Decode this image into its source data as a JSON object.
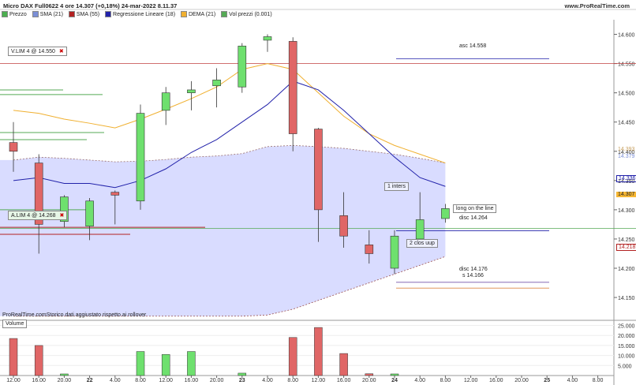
{
  "header": {
    "title": "Micro DAX Full0622 4 ore 14.307 (+0,18%) 24-mar-2022 8.11.37",
    "brand": "www.ProRealTime.com"
  },
  "legend": [
    {
      "label": "Prezzo",
      "color": "#4caf50"
    },
    {
      "label": "SMA (21)",
      "color": "#7b8fd6"
    },
    {
      "label": "SMA (55)",
      "color": "#b22222"
    },
    {
      "label": "Regressione Lineare (18)",
      "color": "#2222aa"
    },
    {
      "label": "DEMA (21)",
      "color": "#f0b030"
    },
    {
      "label": "Vol prezzi (0.001)",
      "color": "#55aa55"
    }
  ],
  "annotations": {
    "vlim": "V.LIM  4 @ 14.550",
    "alim": "A.LIM  4 @ 14.268",
    "asc": "asc 14.558",
    "disc1": "disc 14.264",
    "disc2": "disc 14.176",
    "s": "s 14.166",
    "inters": "1 inters",
    "clos": "2 clos uup",
    "line": "long on the line",
    "footer": "ProRealTime.comStorico dati aggiustato rispetto ai rollover",
    "volume_title": "Volume"
  },
  "price_tags": [
    {
      "label": "14.379",
      "color": "#7b8fd6",
      "bg": "#ffffff"
    },
    {
      "label": "14.336",
      "color": "#2222aa",
      "bg": "#ffffff"
    },
    {
      "label": "14.307",
      "color": "#000000",
      "bg": "#f7b733"
    },
    {
      "label": "14.218",
      "color": "#b22222",
      "bg": "#ffffff"
    },
    {
      "label": "14.393",
      "color": "#c8a060",
      "bg": "#ffffff"
    }
  ],
  "chart_data": {
    "type": "candlestick",
    "price_axis": {
      "ticks": [
        "14.600",
        "14.550",
        "14.500",
        "14.450",
        "14.400",
        "14.350",
        "14.300",
        "14.250",
        "14.200",
        "14.150"
      ],
      "ylim": [
        14.115,
        14.625
      ]
    },
    "volume_axis": {
      "ticks": [
        "25.000",
        "20.000",
        "15.000",
        "10.000",
        "5.000"
      ],
      "ylim": [
        0,
        26000
      ]
    },
    "x_ticks": [
      "12.00",
      "16.00",
      "20.00",
      "22",
      "4.00",
      "8.00",
      "12.00",
      "16.00",
      "20.00",
      "23",
      "4.00",
      "8.00",
      "12.00",
      "16.00",
      "20.00",
      "24",
      "4.00",
      "8.00",
      "12.00",
      "16.00",
      "20.00",
      "25",
      "4.00",
      "8.00"
    ],
    "candles": [
      {
        "open": 14.415,
        "high": 14.45,
        "low": 14.365,
        "close": 14.4
      },
      {
        "open": 14.38,
        "high": 14.395,
        "low": 14.225,
        "close": 14.275
      },
      {
        "open": 14.28,
        "high": 14.325,
        "low": 14.27,
        "close": 14.322
      },
      {
        "open": 14.272,
        "high": 14.32,
        "low": 14.248,
        "close": 14.315
      },
      {
        "open": 14.33,
        "high": 14.333,
        "low": 14.275,
        "close": 14.325
      },
      {
        "open": 14.315,
        "high": 14.48,
        "low": 14.3,
        "close": 14.465
      },
      {
        "open": 14.47,
        "high": 14.51,
        "low": 14.445,
        "close": 14.5
      },
      {
        "open": 14.5,
        "high": 14.52,
        "low": 14.47,
        "close": 14.505
      },
      {
        "open": 14.512,
        "high": 14.542,
        "low": 14.475,
        "close": 14.522
      },
      {
        "open": 14.51,
        "high": 14.585,
        "low": 14.5,
        "close": 14.58
      },
      {
        "open": 14.59,
        "high": 14.6,
        "low": 14.57,
        "close": 14.596
      },
      {
        "open": 14.588,
        "high": 14.595,
        "low": 14.4,
        "close": 14.43
      },
      {
        "open": 14.438,
        "high": 14.44,
        "low": 14.245,
        "close": 14.3
      },
      {
        "open": 14.29,
        "high": 14.33,
        "low": 14.235,
        "close": 14.255
      },
      {
        "open": 14.24,
        "high": 14.265,
        "low": 14.208,
        "close": 14.225
      },
      {
        "open": 14.2,
        "high": 14.265,
        "low": 14.19,
        "close": 14.255
      },
      {
        "open": 14.25,
        "high": 14.33,
        "low": 14.242,
        "close": 14.283
      },
      {
        "open": 14.285,
        "high": 14.31,
        "low": 14.278,
        "close": 14.302
      }
    ],
    "volume": [
      {
        "value": 18500,
        "up": false
      },
      {
        "value": 15000,
        "up": false
      },
      {
        "value": 800,
        "up": true
      },
      {
        "value": null,
        "up": true
      },
      {
        "value": null,
        "up": true
      },
      {
        "value": 12000,
        "up": true
      },
      {
        "value": 10500,
        "up": true
      },
      {
        "value": 12000,
        "up": true
      },
      {
        "value": null,
        "up": true
      },
      {
        "value": 1200,
        "up": true
      },
      {
        "value": null,
        "up": true
      },
      {
        "value": 19000,
        "up": false
      },
      {
        "value": 24000,
        "up": false
      },
      {
        "value": 11000,
        "up": false
      },
      {
        "value": 900,
        "up": false
      },
      {
        "value": 800,
        "up": true
      },
      {
        "value": null,
        "up": true
      },
      {
        "value": null,
        "up": true
      }
    ],
    "series": [
      {
        "name": "SMA (21)",
        "color": "#7b8fd6"
      },
      {
        "name": "SMA (55)",
        "color": "#b22222"
      },
      {
        "name": "Regressione Lineare (18)",
        "color": "#2222aa"
      },
      {
        "name": "DEMA (21)",
        "color": "#f0b030"
      }
    ],
    "reg_line": [
      14.35,
      14.355,
      14.345,
      14.345,
      14.338,
      14.35,
      14.37,
      14.398,
      14.42,
      14.45,
      14.48,
      14.52,
      14.505,
      14.47,
      14.43,
      14.39,
      14.355,
      14.34
    ],
    "dema_line": [
      14.47,
      14.465,
      14.455,
      14.448,
      14.44,
      14.455,
      14.472,
      14.49,
      14.51,
      14.54,
      14.55,
      14.54,
      14.5,
      14.46,
      14.43,
      14.41,
      14.395,
      14.38
    ],
    "band_upper": [
      14.385,
      14.39,
      14.388,
      14.385,
      14.382,
      14.383,
      14.386,
      14.39,
      14.392,
      14.396,
      14.408,
      14.41,
      14.408,
      14.405,
      14.4,
      14.395,
      14.388,
      14.38
    ],
    "band_lower": [
      14.118,
      14.118,
      14.118,
      14.118,
      14.118,
      14.118,
      14.118,
      14.118,
      14.118,
      14.118,
      14.12,
      14.13,
      14.145,
      14.16,
      14.175,
      14.19,
      14.205,
      14.22
    ],
    "levels": {
      "vlim": 14.55,
      "alim": 14.268,
      "asc": 14.558,
      "disc1": 14.264,
      "disc2": 14.176,
      "s": 14.166
    }
  }
}
